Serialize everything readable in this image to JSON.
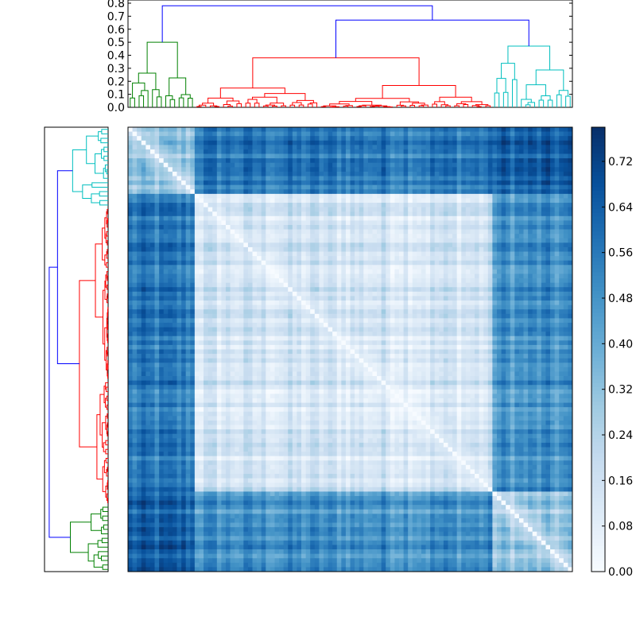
{
  "chart_data": {
    "type": "heatmap",
    "title": "",
    "xlabel": "",
    "ylabel": "",
    "n": 100,
    "colormap": "Blues",
    "colors": {
      "low": "#f7fbff",
      "high": "#08306b",
      "dendro_green": "#008000",
      "dendro_red": "#ff0000",
      "dendro_cyan": "#00bfbf",
      "dendro_link": "#0000ff"
    },
    "clusters": [
      {
        "name": "",
        "color": "green",
        "start": 0,
        "size": 15
      },
      {
        "name": "",
        "color": "red",
        "start": 15,
        "size": 67
      },
      {
        "name": "",
        "color": "cyan",
        "start": 82,
        "size": 18
      }
    ],
    "top_dendrogram": {
      "ylim": [
        0,
        0.8
      ],
      "yticks": [
        "0.0",
        "0.1",
        "0.2",
        "0.3",
        "0.4",
        "0.5",
        "0.6",
        "0.7",
        "0.8"
      ],
      "root_height": 0.78,
      "merge_height": 0.67,
      "green_height": 0.5,
      "red_height": 0.38,
      "cyan_height": 0.47
    },
    "colorbar": {
      "range": [
        0.0,
        0.78
      ],
      "ticks": [
        "0.00",
        "0.08",
        "0.16",
        "0.24",
        "0.32",
        "0.40",
        "0.48",
        "0.56",
        "0.64",
        "0.72"
      ]
    }
  }
}
